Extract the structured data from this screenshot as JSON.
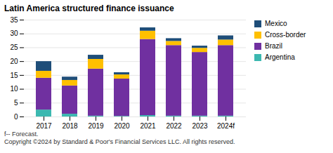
{
  "chart_data": {
    "type": "bar",
    "stacked": true,
    "title": "Latin America structured finance issuance",
    "categories": [
      "2017",
      "2018",
      "2019",
      "2020",
      "2021",
      "2022",
      "2023",
      "2024f"
    ],
    "series": [
      {
        "name": "Argentina",
        "color": "#3cb8b0",
        "values": [
          2.5,
          1.0,
          0.3,
          0.2,
          0.5,
          0.3,
          0.3,
          0.3
        ]
      },
      {
        "name": "Brazil",
        "color": "#7030a0",
        "values": [
          11.5,
          10.2,
          17.0,
          13.5,
          27.5,
          25.5,
          23.0,
          25.5
        ]
      },
      {
        "name": "Cross-border",
        "color": "#ffc000",
        "values": [
          2.5,
          2.0,
          3.5,
          1.5,
          3.0,
          1.5,
          1.5,
          2.0
        ]
      },
      {
        "name": "Mexico",
        "color": "#1f4e79",
        "values": [
          3.5,
          1.2,
          1.5,
          0.8,
          1.2,
          1.0,
          0.8,
          1.5
        ]
      }
    ],
    "ylim": [
      0,
      35
    ],
    "yticks": [
      0,
      5,
      10,
      15,
      20,
      25,
      30,
      35
    ],
    "grid": true,
    "legend": "right",
    "annotations": [
      "f-- Forecast.",
      "Copyright ©2024 by Standard & Poor's Financial Services LLC. All rights reserved."
    ]
  }
}
